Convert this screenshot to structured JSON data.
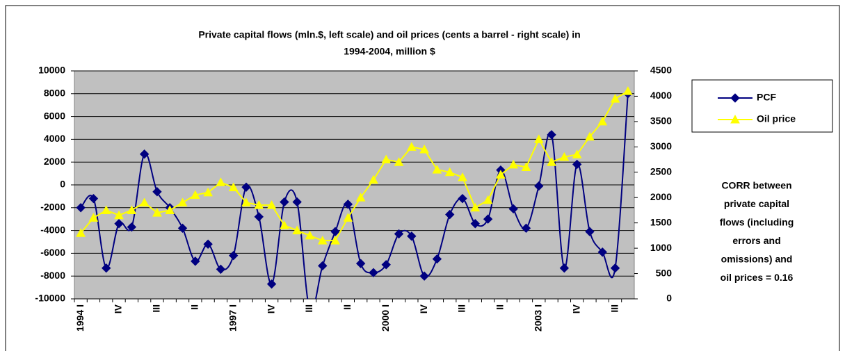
{
  "chart_data": {
    "type": "line",
    "title": [
      "Private capital flows (mln.$, left scale) and oil prices (cents a barrel - right scale) in",
      "1994-2004, million $"
    ],
    "categories": [
      "1994 I",
      null,
      null,
      "IV",
      null,
      null,
      "III",
      null,
      null,
      "II",
      null,
      null,
      "1997 I",
      null,
      null,
      "IV",
      null,
      null,
      "III",
      null,
      null,
      "II",
      null,
      null,
      "2000 I",
      null,
      null,
      "IV",
      null,
      null,
      "III",
      null,
      null,
      "II",
      null,
      null,
      "2003 I",
      null,
      null,
      "IV",
      null,
      null,
      "III",
      null
    ],
    "series": [
      {
        "name": "PCF",
        "color": "#000080",
        "marker": "diamond",
        "axis": "y",
        "values": [
          -2000,
          -1200,
          -7300,
          -3400,
          -3700,
          2700,
          -600,
          -2000,
          -3800,
          -6700,
          -5200,
          -7400,
          -6200,
          -200,
          -2800,
          -8700,
          -1500,
          -1500,
          -11000,
          -7100,
          -4100,
          -1700,
          -6900,
          -7700,
          -7000,
          -4300,
          -4500,
          -8000,
          -6500,
          -2600,
          -1200,
          -3400,
          -3000,
          1300,
          -2100,
          -3800,
          -100,
          4400,
          -7300,
          1800,
          -4100,
          -5900,
          -7300,
          8000
        ]
      },
      {
        "name": "Oil price",
        "color": "#ffff00",
        "marker": "triangle",
        "axis": "y2",
        "values": [
          1300,
          1600,
          1750,
          1650,
          1750,
          1900,
          1700,
          1750,
          1900,
          2050,
          2100,
          2300,
          2200,
          1900,
          1850,
          1850,
          1450,
          1350,
          1250,
          1150,
          1150,
          1600,
          2000,
          2350,
          2750,
          2700,
          3000,
          2950,
          2550,
          2500,
          2400,
          1800,
          1950,
          2450,
          2650,
          2600,
          3150,
          2700,
          2800,
          2850,
          3200,
          3500,
          3950,
          4100
        ]
      }
    ],
    "ylim": [
      -10000,
      10000
    ],
    "yticks": [
      -10000,
      -8000,
      -6000,
      -4000,
      -2000,
      0,
      2000,
      4000,
      6000,
      8000,
      10000
    ],
    "y2lim": [
      0,
      4500
    ],
    "y2ticks": [
      0,
      500,
      1000,
      1500,
      2000,
      2500,
      3000,
      3500,
      4000,
      4500
    ],
    "grid": true,
    "legend": "right",
    "annotation": [
      "CORR between",
      "private capital",
      "flows (including",
      "errors and",
      "omissions) and",
      "oil prices = 0.16"
    ]
  }
}
